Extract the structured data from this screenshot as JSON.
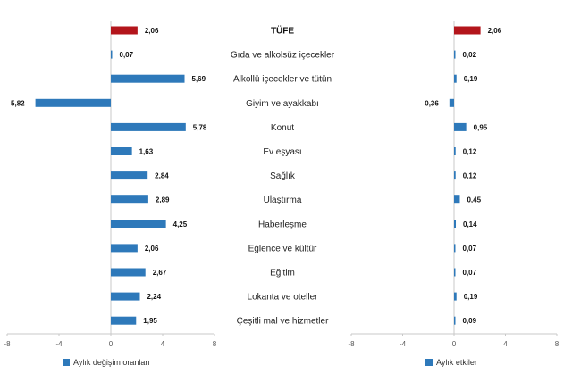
{
  "colors": {
    "series": "#2e79ba",
    "highlight": "#b3151b",
    "axis": "#c8c8c8"
  },
  "chart_data": [
    {
      "type": "bar",
      "orientation": "horizontal",
      "categories": [
        "TÜFE",
        "Gıda ve alkolsüz içecekler",
        "Alkollü içecekler ve tütün",
        "Giyim ve ayakkabı",
        "Konut",
        "Ev eşyası",
        "Sağlık",
        "Ulaştırma",
        "Haberleşme",
        "Eğlence ve kültür",
        "Eğitim",
        "Lokanta ve oteller",
        "Çeşitli mal ve hizmetler"
      ],
      "series": [
        {
          "name": "Aylık değişim oranları",
          "values": [
            2.06,
            0.07,
            5.69,
            -5.82,
            5.78,
            1.63,
            2.84,
            2.89,
            4.25,
            2.06,
            2.67,
            2.24,
            1.95
          ],
          "labels": [
            "2,06",
            "0,07",
            "5,69",
            "-5,82",
            "5,78",
            "1,63",
            "2,84",
            "2,89",
            "4,25",
            "2,06",
            "2,67",
            "2,24",
            "1,95"
          ]
        }
      ],
      "xlim": [
        -8,
        8
      ],
      "xticks": [
        "-8",
        "-4",
        "0",
        "4",
        "8"
      ],
      "legend": "bottom-left",
      "grid": false
    },
    {
      "type": "bar",
      "orientation": "horizontal",
      "categories": [
        "TÜFE",
        "Gıda ve alkolsüz içecekler",
        "Alkollü içecekler ve tütün",
        "Giyim ve ayakkabı",
        "Konut",
        "Ev eşyası",
        "Sağlık",
        "Ulaştırma",
        "Haberleşme",
        "Eğlence ve kültür",
        "Eğitim",
        "Lokanta ve oteller",
        "Çeşitli mal ve hizmetler"
      ],
      "series": [
        {
          "name": "Aylık etkiler",
          "values": [
            2.06,
            0.02,
            0.19,
            -0.36,
            0.95,
            0.12,
            0.12,
            0.45,
            0.14,
            0.07,
            0.07,
            0.19,
            0.09
          ],
          "labels": [
            "2,06",
            "0,02",
            "0,19",
            "-0,36",
            "0,95",
            "0,12",
            "0,12",
            "0,45",
            "0,14",
            "0,07",
            "0,07",
            "0,19",
            "0,09"
          ]
        }
      ],
      "xlim": [
        -8,
        8
      ],
      "xticks": [
        "-8",
        "-4",
        "0",
        "4",
        "8"
      ],
      "legend": "bottom-left",
      "grid": false
    }
  ]
}
